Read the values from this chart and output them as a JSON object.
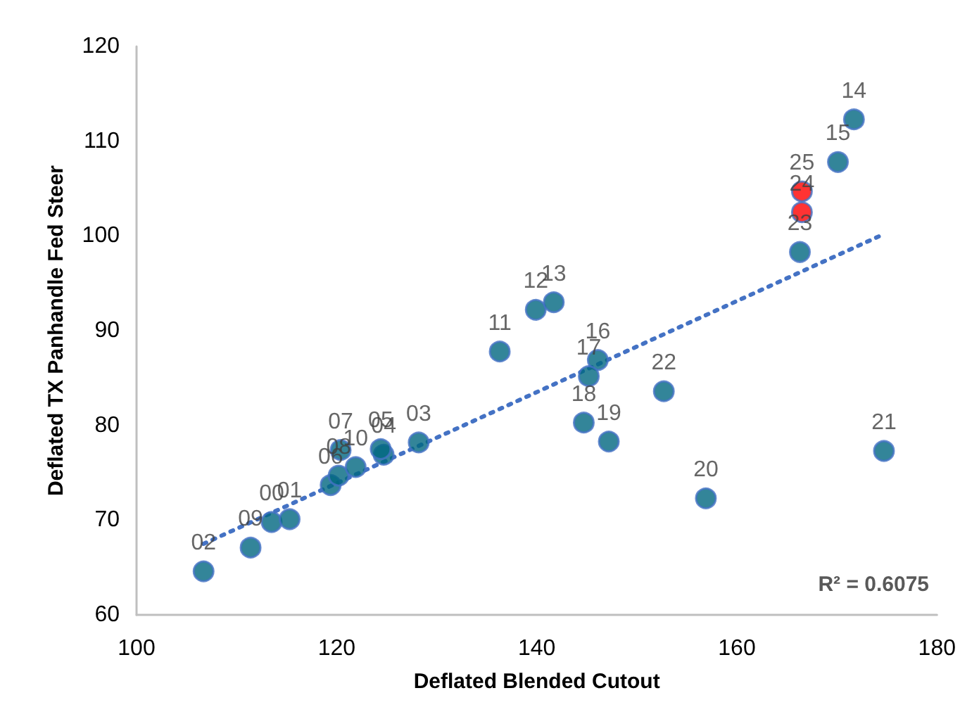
{
  "chart_data": {
    "type": "scatter",
    "xlabel": "Deflated Blended Cutout",
    "ylabel": "Deflated TX Panhandle Fed Steer",
    "xlim": [
      100,
      180
    ],
    "xticks": [
      100,
      120,
      140,
      160,
      180
    ],
    "ylim": [
      60,
      120
    ],
    "yticks": [
      60,
      70,
      80,
      90,
      100,
      110,
      120
    ],
    "grid": false,
    "marker": "circle",
    "series": [
      {
        "color": "#00677f",
        "x": [
          113.5,
          115.3,
          106.7,
          128.2,
          124.7,
          124.4,
          119.4,
          120.4,
          120.2,
          111.4,
          121.9,
          136.3,
          139.9,
          141.7,
          171.7,
          170.1,
          146.1,
          145.2,
          144.7,
          147.2,
          156.9,
          174.7,
          152.7,
          166.3
        ],
        "values": [
          69.8,
          70.1,
          64.6,
          78.2,
          76.9,
          77.5,
          73.7,
          77.4,
          74.7,
          67.1,
          75.6,
          87.8,
          92.2,
          93.0,
          112.3,
          107.8,
          86.9,
          85.2,
          80.3,
          78.3,
          72.3,
          77.3,
          83.6,
          98.3
        ]
      },
      {
        "color": "#ff0000",
        "x": [
          166.5,
          166.5
        ],
        "values": [
          102.5,
          104.7
        ]
      },
      {
        "type": "line",
        "color": "#4472c4",
        "line_style": "dotted",
        "marker": "none",
        "x": [
          106.7,
          174.5
        ],
        "values": [
          67.5,
          100.1
        ]
      }
    ],
    "annotations": [
      {
        "text": "00",
        "x": 113.5,
        "y": 69.8
      },
      {
        "text": "01",
        "x": 115.3,
        "y": 70.1
      },
      {
        "text": "02",
        "x": 106.7,
        "y": 64.6
      },
      {
        "text": "03",
        "x": 128.2,
        "y": 78.2
      },
      {
        "text": "04",
        "x": 124.7,
        "y": 76.9
      },
      {
        "text": "05",
        "x": 124.4,
        "y": 77.5
      },
      {
        "text": "06",
        "x": 119.4,
        "y": 73.7
      },
      {
        "text": "07",
        "x": 120.4,
        "y": 77.4
      },
      {
        "text": "08",
        "x": 120.2,
        "y": 74.7
      },
      {
        "text": "09",
        "x": 111.4,
        "y": 67.1
      },
      {
        "text": "10",
        "x": 121.9,
        "y": 75.6
      },
      {
        "text": "11",
        "x": 136.3,
        "y": 87.8
      },
      {
        "text": "12",
        "x": 139.9,
        "y": 92.2
      },
      {
        "text": "13",
        "x": 141.7,
        "y": 93.0
      },
      {
        "text": "14",
        "x": 171.7,
        "y": 112.3
      },
      {
        "text": "15",
        "x": 170.1,
        "y": 107.8
      },
      {
        "text": "16",
        "x": 146.1,
        "y": 86.9
      },
      {
        "text": "17",
        "x": 145.2,
        "y": 85.2
      },
      {
        "text": "18",
        "x": 144.7,
        "y": 80.3
      },
      {
        "text": "19",
        "x": 147.2,
        "y": 78.3
      },
      {
        "text": "20",
        "x": 156.9,
        "y": 72.3
      },
      {
        "text": "21",
        "x": 174.7,
        "y": 77.3
      },
      {
        "text": "22",
        "x": 152.7,
        "y": 83.6
      },
      {
        "text": "23",
        "x": 166.3,
        "y": 98.3
      },
      {
        "text": "24",
        "x": 166.5,
        "y": 102.5
      },
      {
        "text": "25",
        "x": 166.5,
        "y": 104.7
      },
      "R² = 0.6075"
    ]
  }
}
